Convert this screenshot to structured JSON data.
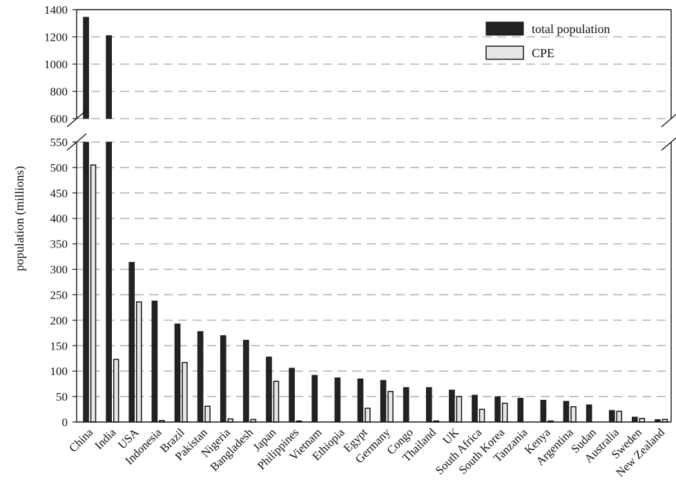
{
  "chart_data": {
    "type": "bar",
    "title": "",
    "xlabel": "",
    "ylabel": "population (millions)",
    "y_axis_break": true,
    "ylim_lower": [
      0,
      550
    ],
    "ylim_upper": [
      600,
      1400
    ],
    "yticks_lower": [
      0,
      50,
      100,
      150,
      200,
      250,
      300,
      350,
      400,
      450,
      500,
      550
    ],
    "yticks_upper": [
      600,
      800,
      1000,
      1200,
      1400
    ],
    "grid": "dashed horizontal",
    "legend_position": "top-right",
    "categories": [
      "China",
      "India",
      "USA",
      "Indonesia",
      "Brazil",
      "Pakistan",
      "Nigeria",
      "Bangladesh",
      "Japan",
      "Philippines",
      "Vietnam",
      "Ethiopia",
      "Egypt",
      "Germany",
      "Congo",
      "Thailand",
      "UK",
      "South Africa",
      "South Korea",
      "Tanzania",
      "Kenya",
      "Argentina",
      "Sudan",
      "Australia",
      "Sweden",
      "New Zealand"
    ],
    "series": [
      {
        "name": "total population",
        "color": "#222222",
        "values": [
          1345,
          1210,
          314,
          238,
          193,
          178,
          170,
          161,
          128,
          106,
          92,
          87,
          85,
          82,
          68,
          68,
          63,
          53,
          50,
          47,
          43,
          41,
          34,
          23,
          10,
          5
        ]
      },
      {
        "name": "CPE",
        "color": "#e6e6e6",
        "values": [
          505,
          123,
          236,
          3,
          117,
          31,
          6,
          5,
          80,
          2,
          0,
          0,
          27,
          60,
          0,
          2,
          50,
          25,
          37,
          0,
          2,
          30,
          0,
          21,
          7,
          5
        ]
      }
    ]
  }
}
